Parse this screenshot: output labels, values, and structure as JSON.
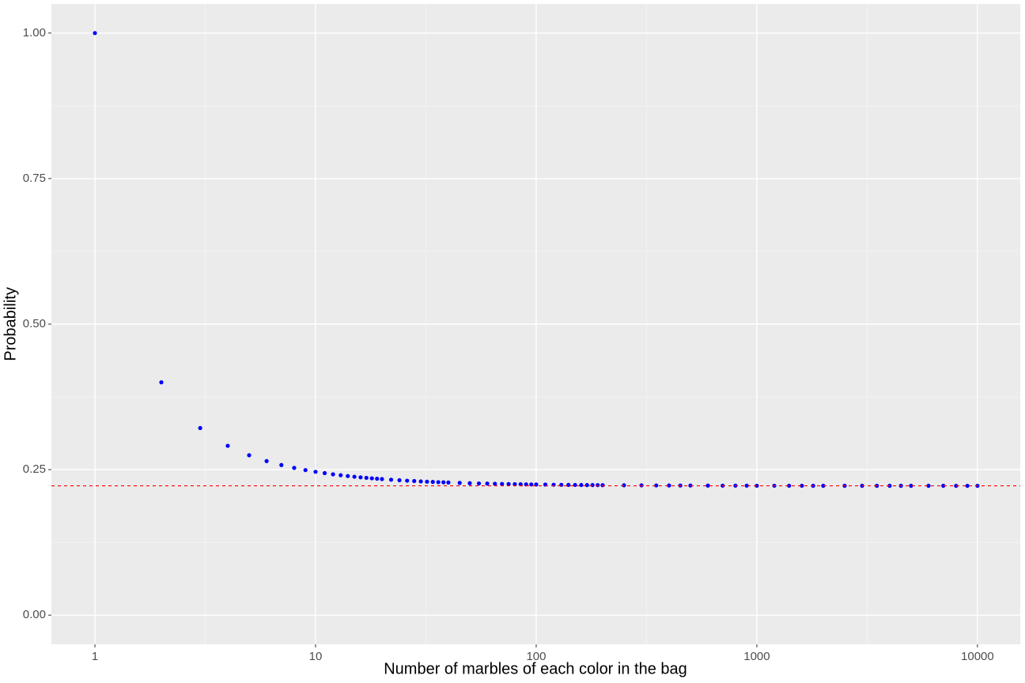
{
  "chart_data": {
    "type": "scatter",
    "xlabel": "Number of marbles of each color in the bag",
    "ylabel": "Probability",
    "x": [
      1,
      2,
      3,
      4,
      5,
      6,
      7,
      8,
      9,
      10,
      11,
      12,
      13,
      14,
      15,
      16,
      17,
      18,
      19,
      20,
      22,
      24,
      26,
      28,
      30,
      32,
      34,
      36,
      38,
      40,
      45,
      50,
      55,
      60,
      65,
      70,
      75,
      80,
      85,
      90,
      95,
      100,
      110,
      120,
      130,
      140,
      150,
      160,
      170,
      180,
      190,
      200,
      250,
      300,
      350,
      400,
      450,
      500,
      600,
      700,
      800,
      900,
      1000,
      1200,
      1400,
      1600,
      1800,
      2000,
      2500,
      3000,
      3500,
      4000,
      4500,
      5000,
      6000,
      7000,
      8000,
      9000,
      10000
    ],
    "values": [
      1,
      0.4,
      0.3214,
      0.2909,
      0.2747,
      0.2647,
      0.2579,
      0.253,
      0.2492,
      0.2463,
      0.244,
      0.242,
      0.2404,
      0.239,
      0.2378,
      0.2368,
      0.2359,
      0.2351,
      0.2344,
      0.2338,
      0.2327,
      0.2318,
      0.231,
      0.2304,
      0.2298,
      0.2293,
      0.2289,
      0.2285,
      0.2282,
      0.2279,
      0.2272,
      0.2267,
      0.2263,
      0.226,
      0.2257,
      0.2254,
      0.2252,
      0.225,
      0.2249,
      0.2247,
      0.2246,
      0.2245,
      0.2243,
      0.2241,
      0.2239,
      0.2238,
      0.2237,
      0.2236,
      0.2235,
      0.2235,
      0.2234,
      0.2233,
      0.2231,
      0.223,
      0.2229,
      0.2228,
      0.2227,
      0.2227,
      0.2226,
      0.2225,
      0.2225,
      0.2225,
      0.2224,
      0.2224,
      0.2224,
      0.2224,
      0.2223,
      0.2223,
      0.2223,
      0.2223,
      0.2223,
      0.2223,
      0.2223,
      0.2223,
      0.2223,
      0.2223,
      0.2222,
      0.2222,
      0.2222
    ],
    "color": "#0000ff",
    "xscale": "log",
    "xlim": [
      0.635,
      15630
    ],
    "xticks": [
      1,
      10,
      100,
      1000,
      10000
    ],
    "ylim": [
      -0.05,
      1.05
    ],
    "yticks": [
      {
        "value": 0,
        "label": "0.00"
      },
      {
        "value": 0.25,
        "label": "0.25"
      },
      {
        "value": 0.5,
        "label": "0.50"
      },
      {
        "value": 0.75,
        "label": "0.75"
      },
      {
        "value": 1,
        "label": "1.00"
      }
    ],
    "grid": true,
    "minor_grid": true,
    "hline": {
      "value": 0.2222,
      "color": "#ff0000",
      "style": "dashed"
    }
  }
}
